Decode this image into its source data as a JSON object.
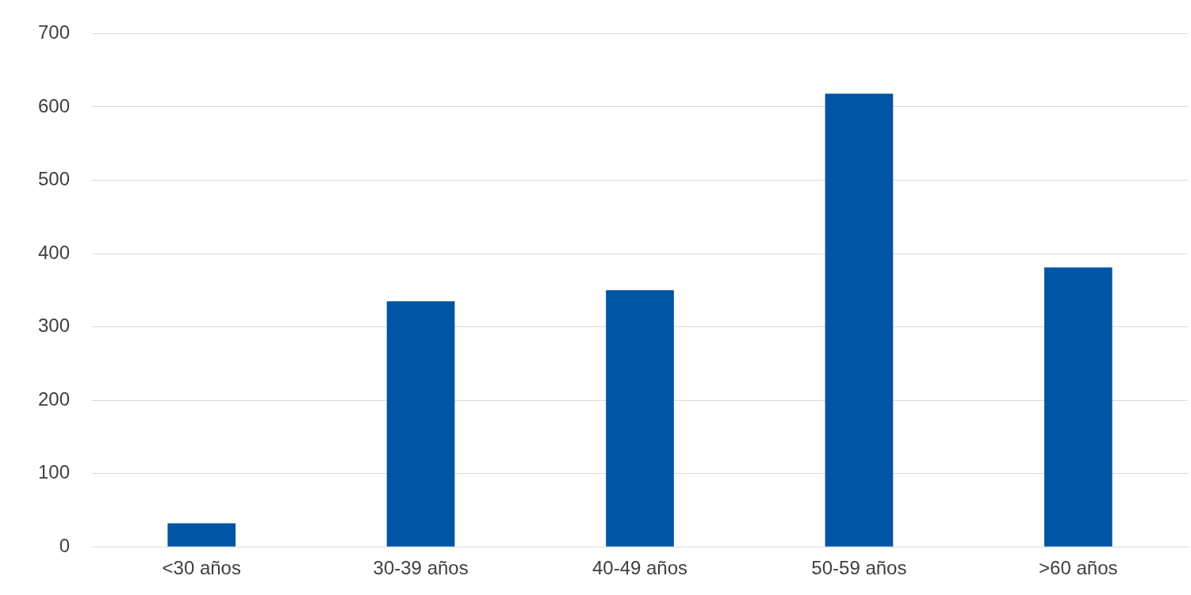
{
  "chart_data": {
    "type": "bar",
    "categories": [
      "<30 años",
      "30-39 años",
      "40-49 años",
      "50-59 años",
      ">60 años"
    ],
    "values": [
      32,
      335,
      350,
      618,
      381
    ],
    "color": "#0055a4",
    "ylim": [
      0,
      700
    ],
    "yticks": [
      0,
      100,
      200,
      300,
      400,
      500,
      600,
      700
    ],
    "grid": "y"
  }
}
